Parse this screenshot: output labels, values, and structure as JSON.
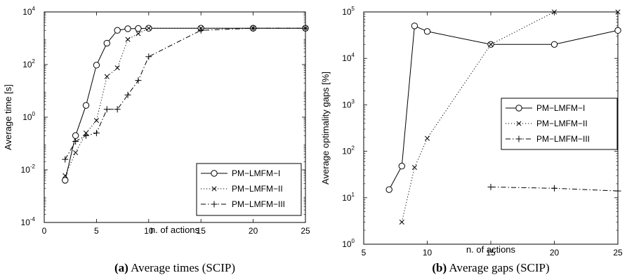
{
  "chart_data": [
    {
      "type": "line",
      "caption_tag": "(a)",
      "caption_text": "Average times (SCIP)",
      "xlabel": "n. of actions",
      "ylabel": "Average time [s]",
      "xlim": [
        0,
        25
      ],
      "ylim": [
        0.0001,
        10000
      ],
      "yscale": "log",
      "grid": false,
      "legend_position": "bottom-right",
      "x_ticks": [
        0,
        5,
        10,
        15,
        20,
        25
      ],
      "y_ticks": [
        {
          "base": "10",
          "exp": "-4",
          "value": 0.0001
        },
        {
          "base": "10",
          "exp": "-2",
          "value": 0.01
        },
        {
          "base": "10",
          "exp": "0",
          "value": 1
        },
        {
          "base": "10",
          "exp": "2",
          "value": 100
        },
        {
          "base": "10",
          "exp": "4",
          "value": 10000
        }
      ],
      "series": [
        {
          "name": "PM−LMFM−I",
          "line_style": "solid",
          "marker": "circle",
          "x": [
            2,
            3,
            4,
            5,
            6,
            7,
            8,
            9,
            10,
            15,
            20,
            25
          ],
          "y": [
            0.004,
            0.2,
            2.8,
            95,
            650,
            2000,
            2300,
            2350,
            2400,
            2400,
            2400,
            2400
          ]
        },
        {
          "name": "PM−LMFM−II",
          "line_style": "dotted",
          "marker": "x",
          "x": [
            2,
            3,
            4,
            5,
            6,
            7,
            8,
            9,
            10,
            15,
            20,
            25
          ],
          "y": [
            0.006,
            0.045,
            0.25,
            0.75,
            35,
            75,
            900,
            1500,
            2400,
            2400,
            2400,
            2400
          ]
        },
        {
          "name": "PM−LMFM−III",
          "line_style": "dashdot",
          "marker": "plus",
          "x": [
            2,
            3,
            4,
            5,
            6,
            7,
            8,
            9,
            10,
            15,
            20,
            25
          ],
          "y": [
            0.025,
            0.12,
            0.2,
            0.25,
            2,
            2,
            7,
            25,
            200,
            2000,
            2400,
            2400
          ]
        }
      ]
    },
    {
      "type": "line",
      "caption_tag": "(b)",
      "caption_text": "Average gaps (SCIP)",
      "xlabel": "n. of actions",
      "ylabel": "Average optimality gaps [%]",
      "xlim": [
        5,
        25
      ],
      "ylim": [
        1,
        100000
      ],
      "yscale": "log",
      "grid": false,
      "legend_position": "center-right",
      "x_ticks": [
        5,
        10,
        15,
        20,
        25
      ],
      "y_ticks": [
        {
          "base": "10",
          "exp": "0",
          "value": 1
        },
        {
          "base": "10",
          "exp": "1",
          "value": 10
        },
        {
          "base": "10",
          "exp": "2",
          "value": 100
        },
        {
          "base": "10",
          "exp": "3",
          "value": 1000
        },
        {
          "base": "10",
          "exp": "4",
          "value": 10000
        },
        {
          "base": "10",
          "exp": "5",
          "value": 100000
        }
      ],
      "series": [
        {
          "name": "PM−LMFM−I",
          "line_style": "solid",
          "marker": "circle",
          "x": [
            7,
            8,
            9,
            10,
            15,
            20,
            25
          ],
          "y": [
            15,
            48,
            50000,
            38000,
            20000,
            20000,
            40000
          ]
        },
        {
          "name": "PM−LMFM−II",
          "line_style": "dotted",
          "marker": "x",
          "x": [
            8,
            9,
            10,
            15,
            20,
            25
          ],
          "y": [
            3,
            45,
            190,
            20000,
            100000,
            100000
          ]
        },
        {
          "name": "PM−LMFM−III",
          "line_style": "dashdot",
          "marker": "plus",
          "x": [
            15,
            20,
            25
          ],
          "y": [
            17,
            16,
            14
          ]
        }
      ]
    }
  ]
}
